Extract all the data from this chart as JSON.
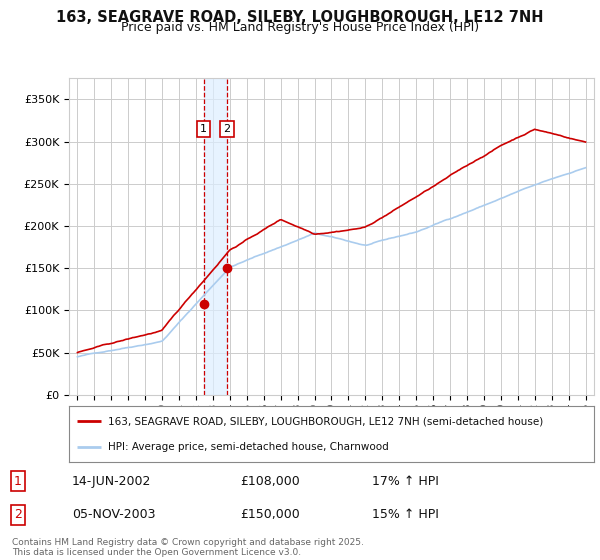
{
  "title": "163, SEAGRAVE ROAD, SILEBY, LOUGHBOROUGH, LE12 7NH",
  "subtitle": "Price paid vs. HM Land Registry's House Price Index (HPI)",
  "legend_label_red": "163, SEAGRAVE ROAD, SILEBY, LOUGHBOROUGH, LE12 7NH (semi-detached house)",
  "legend_label_blue": "HPI: Average price, semi-detached house, Charnwood",
  "footer": "Contains HM Land Registry data © Crown copyright and database right 2025.\nThis data is licensed under the Open Government Licence v3.0.",
  "transaction1_date": "14-JUN-2002",
  "transaction1_price": "£108,000",
  "transaction1_hpi": "17% ↑ HPI",
  "transaction2_date": "05-NOV-2003",
  "transaction2_price": "£150,000",
  "transaction2_hpi": "15% ↑ HPI",
  "sale1_year": 2002.45,
  "sale1_price": 108000,
  "sale2_year": 2003.84,
  "sale2_price": 150000,
  "ylim": [
    0,
    375000
  ],
  "yticks": [
    0,
    50000,
    100000,
    150000,
    200000,
    250000,
    300000,
    350000
  ],
  "bg_color": "#ffffff",
  "grid_color": "#cccccc",
  "red_color": "#cc0000",
  "blue_color": "#aaccee",
  "shade_color": "#ddeeff"
}
